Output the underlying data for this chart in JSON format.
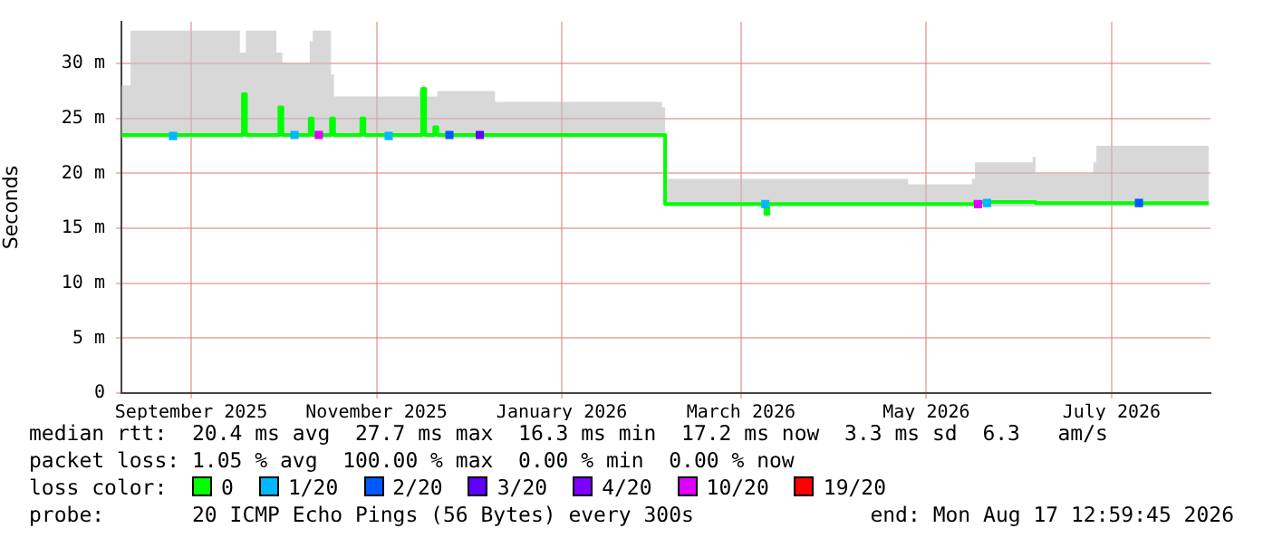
{
  "chart_data": {
    "type": "line",
    "ylabel": "Seconds",
    "x": [
      "2025-08-24",
      "2025-08-27",
      "2025-09-05",
      "2025-09-20",
      "2025-10-02",
      "2025-10-03",
      "2025-10-04",
      "2025-10-14",
      "2025-10-15",
      "2025-10-16",
      "2025-10-25",
      "2025-10-26",
      "2025-11-01",
      "2025-11-02",
      "2025-11-11",
      "2025-11-12",
      "2025-11-30",
      "2025-12-01",
      "2025-12-02",
      "2025-12-05",
      "2025-12-06",
      "2025-12-25",
      "2026-01-15",
      "2026-02-01",
      "2026-02-18",
      "2026-02-19",
      "2026-03-23",
      "2026-03-24",
      "2026-03-25",
      "2026-05-10",
      "2026-05-31",
      "2026-06-01",
      "2026-06-20",
      "2026-06-21",
      "2026-07-10",
      "2026-07-11",
      "2026-08-17"
    ],
    "series": [
      {
        "name": "0",
        "color": "#00ff00",
        "values": [
          23.5,
          23.5,
          23.5,
          23.5,
          23.5,
          27.2,
          23.5,
          23.5,
          26,
          23.5,
          25,
          23.5,
          25,
          23.5,
          25,
          23.5,
          23.5,
          27.7,
          23.5,
          24.2,
          23.5,
          23.5,
          23.5,
          23.5,
          23.5,
          17.2,
          17.2,
          16.3,
          17.2,
          17.2,
          17.2,
          17.4,
          17.4,
          17.3,
          17.3,
          17.3,
          17.3
        ],
        "lower": [
          23.2,
          23.2,
          23.2,
          23.2,
          23.2,
          23.3,
          23.2,
          23.2,
          23.3,
          23.2,
          23.3,
          23.2,
          23.3,
          23.2,
          23.3,
          23.2,
          23.2,
          23.3,
          23.2,
          23.3,
          23.2,
          23.2,
          23.2,
          23.2,
          23.2,
          17,
          17,
          16.2,
          17,
          17,
          17,
          17,
          17,
          17,
          17,
          17,
          17
        ],
        "upper": [
          28,
          33,
          33,
          33,
          31,
          31,
          33,
          31,
          31,
          30,
          32,
          33,
          29,
          27,
          27,
          27,
          27.5,
          28,
          27,
          27,
          27.5,
          26.5,
          26.5,
          26.5,
          26,
          19.5,
          19.5,
          19.5,
          19.5,
          19,
          19.5,
          21,
          21.5,
          20,
          21,
          22.5,
          22.5
        ]
      },
      {
        "name": "1/20",
        "color": "#00b8ff",
        "type": "scatter",
        "marker": "square",
        "x": [
          "2025-09-10",
          "2025-10-20",
          "2025-11-20",
          "2026-03-24",
          "2026-06-05"
        ],
        "values": [
          23.4,
          23.5,
          23.4,
          17.2,
          17.3
        ]
      },
      {
        "name": "2/20",
        "color": "#0059ff",
        "type": "scatter",
        "marker": "square",
        "x": [
          "2025-12-10",
          "2026-07-25"
        ],
        "values": [
          23.5,
          17.3
        ]
      },
      {
        "name": "3/20",
        "color": "#5e00ff",
        "type": "scatter",
        "marker": "square",
        "x": [
          "2025-12-20"
        ],
        "values": [
          23.5
        ]
      },
      {
        "name": "4/20",
        "color": "#7e00ff",
        "type": "scatter",
        "marker": "square",
        "values": [
          null,
          null,
          null,
          null,
          null,
          null,
          null,
          null,
          null,
          null,
          null,
          null,
          null,
          null,
          null,
          null,
          null,
          null,
          null,
          null,
          null,
          null,
          null,
          null,
          null,
          null,
          null,
          null,
          null,
          null,
          null,
          null,
          null,
          null,
          null,
          null,
          null
        ]
      },
      {
        "name": "10/20",
        "color": "#dd00ff",
        "type": "scatter",
        "marker": "square",
        "x": [
          "2025-10-28",
          "2026-06-02"
        ],
        "values": [
          23.5,
          17.2
        ]
      },
      {
        "name": "19/20",
        "color": "#ff0000",
        "type": "scatter",
        "marker": "square",
        "values": [
          null,
          null,
          null,
          null,
          null,
          null,
          null,
          null,
          null,
          null,
          null,
          null,
          null,
          null,
          null,
          null,
          null,
          null,
          null,
          null,
          null,
          null,
          null,
          null,
          null,
          null,
          null,
          null,
          null,
          null,
          null,
          null,
          null,
          null,
          null,
          null,
          null
        ]
      }
    ],
    "xlim": [
      "2025-08-24",
      "2026-08-17T13:00"
    ],
    "xticks": [
      {
        "value": "2025-09-16",
        "label": "September 2025"
      },
      {
        "value": "2025-11-16",
        "label": "November 2025"
      },
      {
        "value": "2026-01-16",
        "label": "January 2026"
      },
      {
        "value": "2026-03-16",
        "label": "March 2026"
      },
      {
        "value": "2026-05-16",
        "label": "May 2026"
      },
      {
        "value": "2026-07-16",
        "label": "July 2026"
      }
    ],
    "ylim": [
      0,
      33.8
    ],
    "yticks": [
      0,
      {
        "value": 5,
        "label": "5 m"
      },
      {
        "value": 10,
        "label": "10 m"
      },
      {
        "value": 15,
        "label": "15 m"
      },
      {
        "value": 20,
        "label": "20 m"
      },
      {
        "value": 25,
        "label": "25 m"
      },
      {
        "value": 30,
        "label": "30 m"
      }
    ],
    "grid": true,
    "marker": "none",
    "legend": "bottom",
    "legend_title": "loss color:",
    "annotations": [
      "median rtt:  20.4 ms avg  27.7 ms max  16.3 ms min  17.2 ms now  3.3 ms sd  6.3   am/s",
      "packet loss: 1.05 % avg  100.00 % max  0.00 % min  0.00 % now",
      "probe:       20 ICMP Echo Pings (56 Bytes) every 300s",
      "end: Mon Aug 17 12:59:45 2026"
    ]
  }
}
